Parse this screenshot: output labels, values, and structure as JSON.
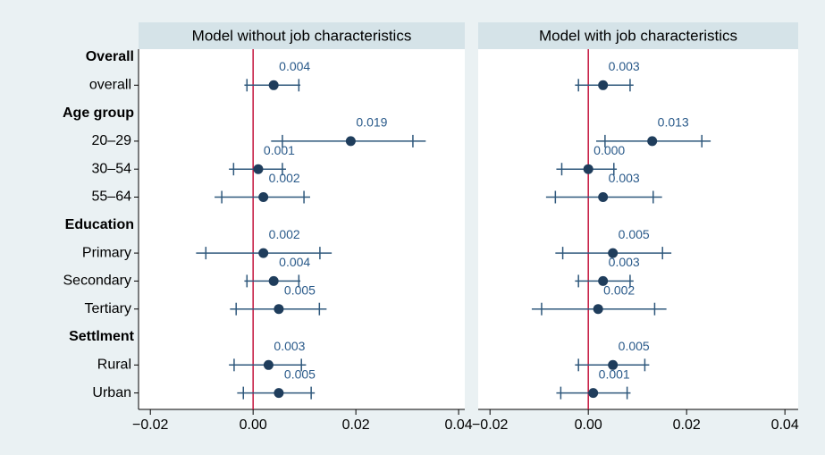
{
  "groups": [
    {
      "header": "Overall",
      "rows": [
        "overall"
      ]
    },
    {
      "header": "Age group",
      "rows": [
        "20–29",
        "30–54",
        "55–64"
      ]
    },
    {
      "header": "Education",
      "rows": [
        "Primary",
        "Secondary",
        "Tertiary"
      ]
    },
    {
      "header": "Settlment",
      "rows": [
        "Rural",
        "Urban"
      ]
    }
  ],
  "chart_data": [
    {
      "type": "coefplot",
      "title": "Model without job characteristics",
      "xlim": [
        -0.0223,
        0.0412
      ],
      "xticks": [
        {
          "value": -0.02,
          "label": "−0.02"
        },
        {
          "value": 0,
          "label": "0.00"
        },
        0.02,
        0.04
      ],
      "reference_line": 0,
      "reference_color": "#c4143c",
      "color": "#1f3d5c",
      "line_color": "#2f587c",
      "values": [
        0.004,
        0.019,
        0.001,
        0.002,
        0.002,
        0.004,
        0.005,
        0.003,
        0.005
      ],
      "value_labels": [
        "0.004",
        "0.019",
        "0.001",
        "0.002",
        "0.002",
        "0.004",
        "0.005",
        "0.003",
        "0.005"
      ],
      "ci_low": [
        -0.0017,
        0.0035,
        -0.0047,
        -0.0075,
        -0.0111,
        -0.0017,
        -0.0045,
        -0.0047,
        -0.0031
      ],
      "ci_high": [
        0.0092,
        0.0336,
        0.0064,
        0.0111,
        0.0153,
        0.0092,
        0.0143,
        0.0103,
        0.012
      ],
      "ci90_low": [
        -0.0012,
        0.0057,
        -0.0038,
        -0.0061,
        -0.0092,
        -0.0012,
        -0.0033,
        -0.0037,
        -0.0019
      ],
      "ci90_high": [
        0.0089,
        0.0311,
        0.0057,
        0.0099,
        0.013,
        0.0089,
        0.0129,
        0.0094,
        0.0113
      ]
    },
    {
      "type": "coefplot",
      "title": "Model with job characteristics",
      "xlim": [
        -0.0224,
        0.0427
      ],
      "xticks": [
        {
          "value": -0.02,
          "label": "−0.02"
        },
        {
          "value": 0,
          "label": "0.00"
        },
        0.02,
        0.04
      ],
      "reference_line": 0,
      "reference_color": "#c4143c",
      "color": "#1f3d5c",
      "line_color": "#2f587c",
      "values": [
        0.003,
        0.013,
        0.0,
        0.003,
        0.005,
        0.003,
        0.002,
        0.005,
        0.001
      ],
      "value_labels": [
        "0.003",
        "0.013",
        "0.000",
        "0.003",
        "0.005",
        "0.003",
        "0.002",
        "0.005",
        "0.001"
      ],
      "ci_low": [
        -0.0027,
        0.0016,
        -0.0065,
        -0.0086,
        -0.0067,
        -0.0027,
        -0.0115,
        -0.0027,
        -0.0065
      ],
      "ci_high": [
        0.0092,
        0.0249,
        0.0058,
        0.015,
        0.0169,
        0.0092,
        0.0159,
        0.0124,
        0.0086
      ],
      "ci90_low": [
        -0.002,
        0.0034,
        -0.0054,
        -0.0067,
        -0.0052,
        -0.002,
        -0.0095,
        -0.002,
        -0.0056
      ],
      "ci90_high": [
        0.0085,
        0.0231,
        0.0052,
        0.0132,
        0.0151,
        0.0085,
        0.0135,
        0.0115,
        0.0079
      ]
    }
  ]
}
